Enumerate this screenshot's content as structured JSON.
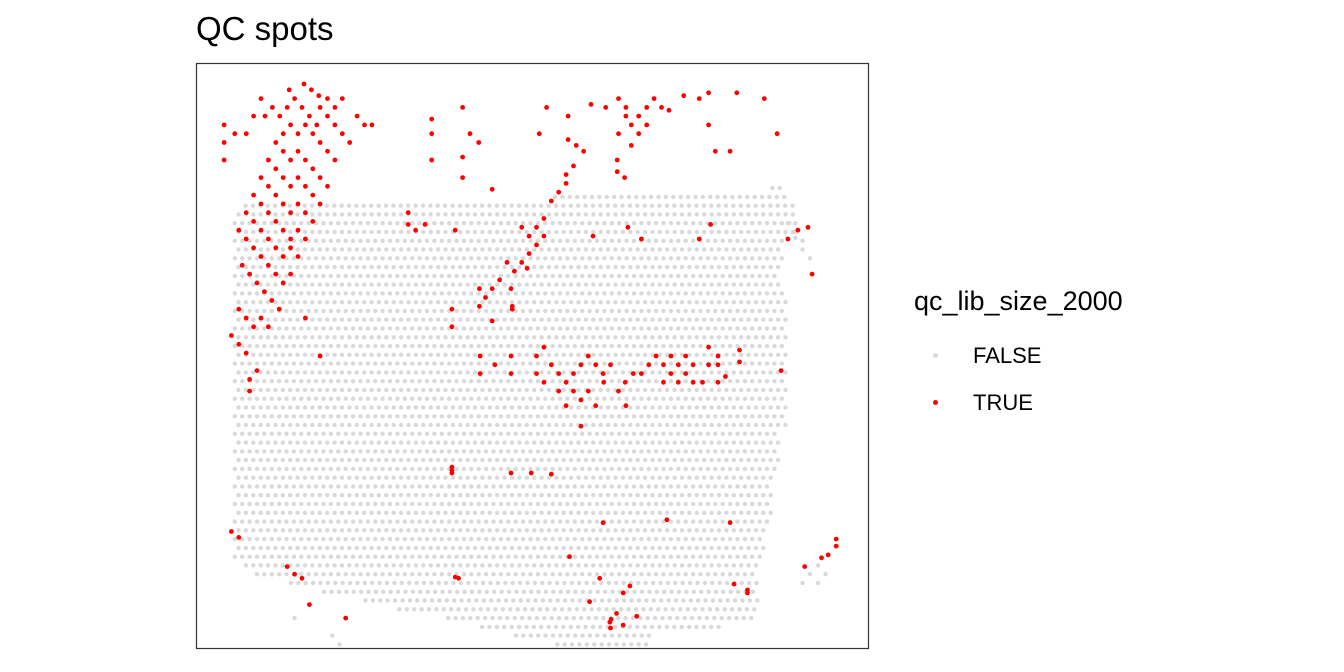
{
  "chart_data": {
    "type": "scatter",
    "title": "QC spots",
    "xlabel": "",
    "ylabel": "",
    "axes_visible": false,
    "grid": false,
    "legend": {
      "title": "qc_lib_size_2000",
      "placement": "right",
      "entries": [
        {
          "label": "FALSE",
          "color": "#d9d9d9"
        },
        {
          "label": "TRUE",
          "color": "#ff0000"
        }
      ]
    },
    "x_range": [
      0,
      100
    ],
    "y_range": [
      0,
      100
    ],
    "base_grid": {
      "x_step": 1.1,
      "y_step": 1.5,
      "rows": [
        [
          78.7,
          85.7,
          86.9
        ],
        [
          77.2,
          52.8,
          88.0
        ],
        [
          75.7,
          7.3,
          89.1
        ],
        [
          74.2,
          5.7,
          89.1
        ],
        [
          72.7,
          5.7,
          89.1
        ],
        [
          71.2,
          5.7,
          89.1
        ],
        [
          69.7,
          5.7,
          87.5
        ],
        [
          68.2,
          5.7,
          87.5
        ],
        [
          66.7,
          5.7,
          87.5
        ],
        [
          65.2,
          5.7,
          86.9
        ],
        [
          63.7,
          5.7,
          86.9
        ],
        [
          62.2,
          5.7,
          86.9
        ],
        [
          60.7,
          5.7,
          88.0
        ],
        [
          59.2,
          5.7,
          88.0
        ],
        [
          57.7,
          5.7,
          88.0
        ],
        [
          56.2,
          5.7,
          88.0
        ],
        [
          54.7,
          5.7,
          88.0
        ],
        [
          53.2,
          5.7,
          88.0
        ],
        [
          51.7,
          5.7,
          88.0
        ],
        [
          50.2,
          5.7,
          88.0
        ],
        [
          48.7,
          5.7,
          88.0
        ],
        [
          47.2,
          5.7,
          88.0
        ],
        [
          45.7,
          5.7,
          88.0
        ],
        [
          44.2,
          5.7,
          88.0
        ],
        [
          42.7,
          5.7,
          88.0
        ],
        [
          41.2,
          5.7,
          88.0
        ],
        [
          39.7,
          5.7,
          88.0
        ],
        [
          38.2,
          5.7,
          88.0
        ],
        [
          36.7,
          5.7,
          86.9
        ],
        [
          35.2,
          5.7,
          86.9
        ],
        [
          33.7,
          5.7,
          86.9
        ],
        [
          32.2,
          5.7,
          86.9
        ],
        [
          30.7,
          5.7,
          86.9
        ],
        [
          29.2,
          5.7,
          85.7
        ],
        [
          27.7,
          5.7,
          85.7
        ],
        [
          26.2,
          5.7,
          85.7
        ],
        [
          24.7,
          5.7,
          85.7
        ],
        [
          23.2,
          5.7,
          85.7
        ],
        [
          21.7,
          5.7,
          85.7
        ],
        [
          20.2,
          5.7,
          84.6
        ],
        [
          18.7,
          5.7,
          84.6
        ],
        [
          17.2,
          5.7,
          84.6
        ],
        [
          15.7,
          5.7,
          84.6
        ],
        [
          14.2,
          6.8,
          83.5
        ],
        [
          12.7,
          9.0,
          83.5
        ],
        [
          11.2,
          13.5,
          83.5
        ],
        [
          9.7,
          19.0,
          83.5
        ],
        [
          8.2,
          24.6,
          83.5
        ],
        [
          6.7,
          30.2,
          83.5
        ],
        [
          5.2,
          36.9,
          83.5
        ],
        [
          3.7,
          42.5,
          78.0
        ],
        [
          2.2,
          47.0,
          68.0
        ],
        [
          0.7,
          53.7,
          67.0
        ]
      ],
      "extras": [
        [
          88.0,
          72.7
        ],
        [
          89.1,
          72.7
        ],
        [
          89.1,
          71.2
        ],
        [
          90.2,
          69.7
        ],
        [
          90.2,
          68.2
        ],
        [
          91.3,
          66.7
        ],
        [
          89.1,
          70.2
        ],
        [
          92.5,
          11.2
        ],
        [
          93.6,
          12.7
        ],
        [
          92.5,
          14.2
        ],
        [
          91.3,
          12.7
        ],
        [
          90.2,
          11.2
        ],
        [
          20.2,
          2.2
        ],
        [
          21.3,
          0.7
        ],
        [
          14.6,
          5.2
        ]
      ]
    },
    "true_points": [
      [
        10.2,
        91.0
      ],
      [
        11.3,
        92.5
      ],
      [
        12.4,
        91.0
      ],
      [
        13.5,
        92.5
      ],
      [
        14.6,
        94.0
      ],
      [
        15.7,
        92.5
      ],
      [
        16.8,
        91.0
      ],
      [
        17.9,
        89.5
      ],
      [
        12.9,
        88.0
      ],
      [
        14.0,
        89.5
      ],
      [
        15.1,
        88.0
      ],
      [
        16.2,
        89.5
      ],
      [
        17.3,
        88.0
      ],
      [
        18.4,
        86.5
      ],
      [
        19.5,
        85.0
      ],
      [
        20.6,
        83.5
      ],
      [
        11.8,
        86.5
      ],
      [
        12.9,
        85.0
      ],
      [
        14.0,
        83.5
      ],
      [
        15.1,
        85.0
      ],
      [
        16.2,
        83.5
      ],
      [
        17.3,
        82.0
      ],
      [
        18.4,
        80.5
      ],
      [
        19.5,
        79.0
      ],
      [
        10.7,
        83.5
      ],
      [
        11.8,
        82.0
      ],
      [
        12.9,
        80.5
      ],
      [
        14.0,
        79.0
      ],
      [
        15.1,
        80.5
      ],
      [
        16.2,
        79.0
      ],
      [
        17.3,
        77.5
      ],
      [
        18.4,
        76.0
      ],
      [
        9.6,
        80.5
      ],
      [
        10.7,
        79.0
      ],
      [
        11.8,
        77.5
      ],
      [
        12.9,
        76.0
      ],
      [
        14.0,
        74.5
      ],
      [
        15.1,
        76.0
      ],
      [
        16.2,
        74.5
      ],
      [
        17.3,
        73.0
      ],
      [
        8.5,
        77.5
      ],
      [
        9.6,
        76.0
      ],
      [
        10.7,
        74.5
      ],
      [
        11.8,
        73.0
      ],
      [
        12.9,
        71.5
      ],
      [
        14.0,
        70.0
      ],
      [
        15.1,
        71.5
      ],
      [
        16.2,
        70.0
      ],
      [
        7.4,
        74.5
      ],
      [
        8.5,
        73.0
      ],
      [
        9.6,
        71.5
      ],
      [
        10.7,
        70.0
      ],
      [
        11.8,
        68.5
      ],
      [
        12.9,
        67.0
      ],
      [
        14.0,
        68.5
      ],
      [
        15.1,
        67.0
      ],
      [
        6.3,
        71.5
      ],
      [
        7.4,
        70.0
      ],
      [
        8.5,
        68.5
      ],
      [
        9.6,
        67.0
      ],
      [
        10.7,
        65.5
      ],
      [
        11.8,
        64.0
      ],
      [
        12.9,
        62.5
      ],
      [
        14.0,
        64.0
      ],
      [
        6.8,
        65.5
      ],
      [
        7.9,
        64.0
      ],
      [
        9.0,
        62.5
      ],
      [
        10.1,
        61.0
      ],
      [
        11.2,
        59.5
      ],
      [
        12.3,
        58.0
      ],
      [
        6.3,
        58.0
      ],
      [
        7.4,
        56.5
      ],
      [
        8.5,
        55.0
      ],
      [
        9.6,
        56.5
      ],
      [
        10.7,
        55.0
      ],
      [
        5.2,
        53.5
      ],
      [
        6.3,
        52.0
      ],
      [
        7.4,
        50.5
      ],
      [
        4.1,
        89.5
      ],
      [
        4.1,
        86.5
      ],
      [
        5.7,
        88.0
      ],
      [
        4.1,
        83.5
      ],
      [
        7.4,
        88.0
      ],
      [
        8.5,
        91.0
      ],
      [
        9.6,
        94.0
      ],
      [
        18.4,
        92.5
      ],
      [
        19.5,
        91.0
      ],
      [
        20.6,
        89.5
      ],
      [
        21.7,
        88.0
      ],
      [
        22.8,
        86.5
      ],
      [
        23.9,
        91.0
      ],
      [
        25.0,
        89.5
      ],
      [
        26.1,
        89.5
      ],
      [
        19.5,
        94.0
      ],
      [
        20.6,
        92.5
      ],
      [
        21.7,
        94.0
      ],
      [
        13.8,
        95.5
      ],
      [
        16.0,
        96.5
      ],
      [
        17.1,
        95.5
      ],
      [
        18.2,
        94.5
      ],
      [
        7.9,
        46.0
      ],
      [
        9.0,
        47.5
      ],
      [
        7.9,
        44.0
      ],
      [
        18.4,
        50.0
      ],
      [
        35.0,
        88.0
      ],
      [
        35.0,
        83.5
      ],
      [
        35.0,
        90.5
      ],
      [
        39.6,
        92.5
      ],
      [
        40.7,
        88.0
      ],
      [
        42.0,
        86.5
      ],
      [
        39.6,
        84.0
      ],
      [
        39.6,
        80.5
      ],
      [
        38.5,
        71.5
      ],
      [
        34.0,
        72.5
      ],
      [
        31.5,
        74.5
      ],
      [
        31.5,
        72.5
      ],
      [
        32.6,
        71.5
      ],
      [
        44.0,
        78.5
      ],
      [
        51.0,
        88.0
      ],
      [
        55.3,
        87.0
      ],
      [
        55.3,
        91.0
      ],
      [
        56.5,
        86.0
      ],
      [
        57.6,
        85.0
      ],
      [
        52.1,
        92.5
      ],
      [
        58.7,
        93.0
      ],
      [
        60.9,
        92.5
      ],
      [
        62.8,
        94.0
      ],
      [
        63.9,
        92.5
      ],
      [
        63.9,
        91.0
      ],
      [
        62.8,
        88.0
      ],
      [
        64.7,
        89.5
      ],
      [
        65.8,
        91.0
      ],
      [
        67.0,
        92.5
      ],
      [
        68.1,
        94.0
      ],
      [
        69.2,
        92.5
      ],
      [
        70.3,
        92.0
      ],
      [
        72.5,
        94.5
      ],
      [
        74.8,
        94.0
      ],
      [
        76.2,
        95.0
      ],
      [
        76.2,
        89.5
      ],
      [
        80.4,
        95.0
      ],
      [
        84.5,
        94.0
      ],
      [
        86.4,
        88.0
      ],
      [
        77.2,
        85.0
      ],
      [
        79.4,
        85.0
      ],
      [
        65.8,
        88.0
      ],
      [
        67.0,
        89.5
      ],
      [
        64.7,
        86.0
      ],
      [
        62.6,
        83.5
      ],
      [
        62.6,
        81.5
      ],
      [
        63.7,
        80.5
      ],
      [
        55.0,
        81.0
      ],
      [
        55.0,
        79.5
      ],
      [
        56.1,
        82.5
      ],
      [
        53.9,
        78.0
      ],
      [
        52.8,
        76.5
      ],
      [
        51.7,
        73.5
      ],
      [
        50.6,
        72.0
      ],
      [
        51.7,
        70.5
      ],
      [
        50.6,
        69.0
      ],
      [
        49.5,
        70.5
      ],
      [
        48.4,
        72.0
      ],
      [
        49.5,
        67.5
      ],
      [
        48.4,
        66.0
      ],
      [
        47.3,
        64.5
      ],
      [
        46.2,
        66.0
      ],
      [
        45.1,
        63.0
      ],
      [
        44.0,
        61.5
      ],
      [
        43.0,
        60.0
      ],
      [
        42.1,
        58.5
      ],
      [
        42.1,
        61.5
      ],
      [
        49.2,
        65.0
      ],
      [
        46.8,
        61.5
      ],
      [
        47.0,
        58.0
      ],
      [
        44.0,
        56.0
      ],
      [
        47.0,
        58.5
      ],
      [
        59.0,
        70.5
      ],
      [
        64.2,
        72.0
      ],
      [
        66.2,
        70.0
      ],
      [
        74.8,
        70.0
      ],
      [
        76.5,
        72.5
      ],
      [
        88.0,
        70.0
      ],
      [
        89.5,
        71.5
      ],
      [
        91.0,
        72.0
      ],
      [
        91.6,
        64.0
      ],
      [
        50.6,
        50.0
      ],
      [
        51.7,
        51.5
      ],
      [
        50.6,
        47.0
      ],
      [
        51.7,
        45.5
      ],
      [
        52.8,
        48.5
      ],
      [
        53.9,
        47.0
      ],
      [
        53.9,
        44.0
      ],
      [
        55.0,
        45.5
      ],
      [
        56.1,
        47.0
      ],
      [
        57.2,
        48.5
      ],
      [
        58.3,
        50.0
      ],
      [
        59.4,
        48.5
      ],
      [
        60.5,
        47.0
      ],
      [
        61.6,
        48.5
      ],
      [
        56.1,
        44.0
      ],
      [
        57.2,
        42.5
      ],
      [
        58.3,
        44.0
      ],
      [
        60.6,
        45.5
      ],
      [
        59.4,
        41.5
      ],
      [
        55.0,
        41.5
      ],
      [
        42.2,
        50.0
      ],
      [
        44.4,
        48.5
      ],
      [
        46.8,
        50.0
      ],
      [
        42.2,
        47.0
      ],
      [
        46.8,
        47.0
      ],
      [
        65.0,
        47.0
      ],
      [
        63.8,
        45.5
      ],
      [
        62.8,
        44.0
      ],
      [
        63.9,
        41.5
      ],
      [
        66.2,
        47.0
      ],
      [
        67.3,
        48.5
      ],
      [
        68.4,
        50.0
      ],
      [
        69.5,
        48.5
      ],
      [
        70.6,
        50.0
      ],
      [
        71.7,
        48.5
      ],
      [
        72.8,
        50.0
      ],
      [
        73.9,
        48.5
      ],
      [
        72.8,
        47.0
      ],
      [
        71.7,
        45.5
      ],
      [
        69.5,
        45.5
      ],
      [
        70.6,
        47.0
      ],
      [
        73.9,
        45.5
      ],
      [
        75.3,
        45.5
      ],
      [
        76.2,
        48.5
      ],
      [
        76.2,
        51.5
      ],
      [
        77.6,
        48.5
      ],
      [
        77.6,
        50.0
      ],
      [
        78.7,
        46.5
      ],
      [
        77.6,
        45.5
      ],
      [
        80.8,
        51.0
      ],
      [
        80.8,
        49.0
      ],
      [
        87.0,
        47.5
      ],
      [
        16.2,
        56.5
      ],
      [
        38.0,
        55.0
      ],
      [
        38.0,
        58.0
      ],
      [
        5.2,
        20.0
      ],
      [
        6.3,
        19.0
      ],
      [
        13.5,
        14.0
      ],
      [
        14.6,
        12.7
      ],
      [
        15.7,
        12.0
      ],
      [
        16.8,
        7.5
      ],
      [
        38.0,
        30.0
      ],
      [
        46.8,
        30.0
      ],
      [
        38.0,
        30.5
      ],
      [
        38.0,
        31.0
      ],
      [
        55.5,
        15.7
      ],
      [
        60.5,
        21.5
      ],
      [
        60.0,
        12.0
      ],
      [
        39.0,
        12.0
      ],
      [
        63.5,
        9.5
      ],
      [
        64.5,
        10.7
      ],
      [
        61.5,
        4.5
      ],
      [
        62.5,
        6.0
      ],
      [
        61.7,
        5.0
      ],
      [
        63.5,
        4.0
      ],
      [
        65.5,
        5.5
      ],
      [
        58.5,
        8.0
      ],
      [
        61.6,
        3.5
      ],
      [
        82.0,
        10.0
      ],
      [
        80.0,
        11.0
      ],
      [
        82.0,
        9.5
      ],
      [
        90.5,
        14.0
      ],
      [
        93.0,
        15.5
      ],
      [
        95.2,
        17.5
      ],
      [
        95.2,
        18.7
      ],
      [
        94.0,
        16.0
      ],
      [
        49.8,
        30.0
      ],
      [
        57.2,
        38.0
      ],
      [
        52.8,
        29.8
      ],
      [
        79.4,
        21.5
      ],
      [
        70.0,
        22.0
      ],
      [
        22.2,
        5.2
      ],
      [
        38.5,
        12.2
      ]
    ]
  }
}
